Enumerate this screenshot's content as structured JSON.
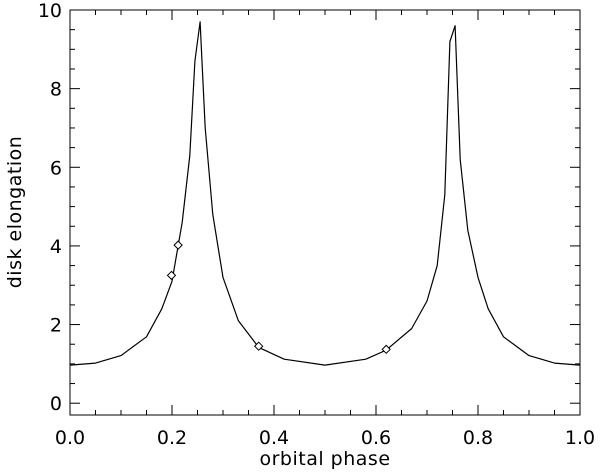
{
  "chart_data": {
    "type": "line",
    "title": "",
    "xlabel": "orbital phase",
    "ylabel": "disk elongation",
    "xlim": [
      0.0,
      1.0
    ],
    "ylim": [
      -0.3,
      10.0
    ],
    "x_ticks": [
      "0.0",
      "0.2",
      "0.4",
      "0.6",
      "0.8",
      "1.0"
    ],
    "y_ticks": [
      "0",
      "2",
      "4",
      "6",
      "8",
      "10"
    ],
    "x_tick_values": [
      0.0,
      0.2,
      0.4,
      0.6,
      0.8,
      1.0
    ],
    "y_tick_values": [
      0,
      2,
      4,
      6,
      8,
      10
    ],
    "grid": false,
    "legend": "none",
    "series": [
      {
        "kind": "curve",
        "color": "#000000",
        "x": [
          0.0,
          0.05,
          0.1,
          0.15,
          0.18,
          0.2,
          0.22,
          0.235,
          0.245,
          0.255,
          0.265,
          0.28,
          0.3,
          0.33,
          0.37,
          0.42,
          0.5,
          0.58,
          0.62,
          0.67,
          0.7,
          0.72,
          0.735,
          0.745,
          0.755,
          0.765,
          0.78,
          0.8,
          0.82,
          0.85,
          0.9,
          0.95,
          1.0
        ],
        "y": [
          0.97,
          1.02,
          1.21,
          1.69,
          2.4,
          3.1,
          4.6,
          6.3,
          8.7,
          9.7,
          7.0,
          4.8,
          3.2,
          2.1,
          1.42,
          1.12,
          0.97,
          1.12,
          1.35,
          1.9,
          2.6,
          3.5,
          5.3,
          9.2,
          9.6,
          6.2,
          4.4,
          3.2,
          2.4,
          1.69,
          1.21,
          1.02,
          0.97
        ]
      },
      {
        "kind": "points",
        "marker": "diamond",
        "color": "#000000",
        "x": [
          0.199,
          0.212,
          0.37,
          0.62
        ],
        "y": [
          3.25,
          4.02,
          1.45,
          1.37
        ]
      }
    ]
  }
}
